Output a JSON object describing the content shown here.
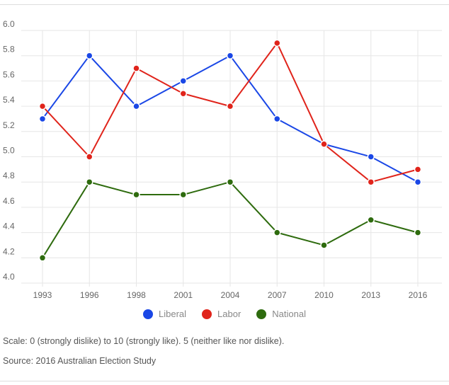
{
  "chart_data": {
    "type": "line",
    "categories": [
      "1993",
      "1996",
      "1998",
      "2001",
      "2004",
      "2007",
      "2010",
      "2013",
      "2016"
    ],
    "series": [
      {
        "name": "Liberal",
        "color": "#1a47e6",
        "values": [
          5.3,
          5.8,
          5.4,
          5.6,
          5.8,
          5.3,
          5.1,
          5.0,
          4.8
        ]
      },
      {
        "name": "Labor",
        "color": "#e0241b",
        "values": [
          5.4,
          5.0,
          5.7,
          5.5,
          5.4,
          5.9,
          5.1,
          4.8,
          4.9
        ]
      },
      {
        "name": "National",
        "color": "#2e6b0e",
        "values": [
          4.2,
          4.8,
          4.7,
          4.7,
          4.8,
          4.4,
          4.3,
          4.5,
          4.4
        ]
      }
    ],
    "ylim": [
      4.0,
      6.0
    ],
    "yticks": [
      "4.0",
      "4.2",
      "4.4",
      "4.6",
      "4.8",
      "5.0",
      "5.2",
      "5.4",
      "5.6",
      "5.8",
      "6.0"
    ],
    "grid": true,
    "legend_position": "bottom"
  },
  "notes": {
    "scale": "Scale: 0 (strongly dislike) to 10 (strongly like). 5 (neither like nor dislike).",
    "source": "Source: 2016 Australian Election Study"
  }
}
